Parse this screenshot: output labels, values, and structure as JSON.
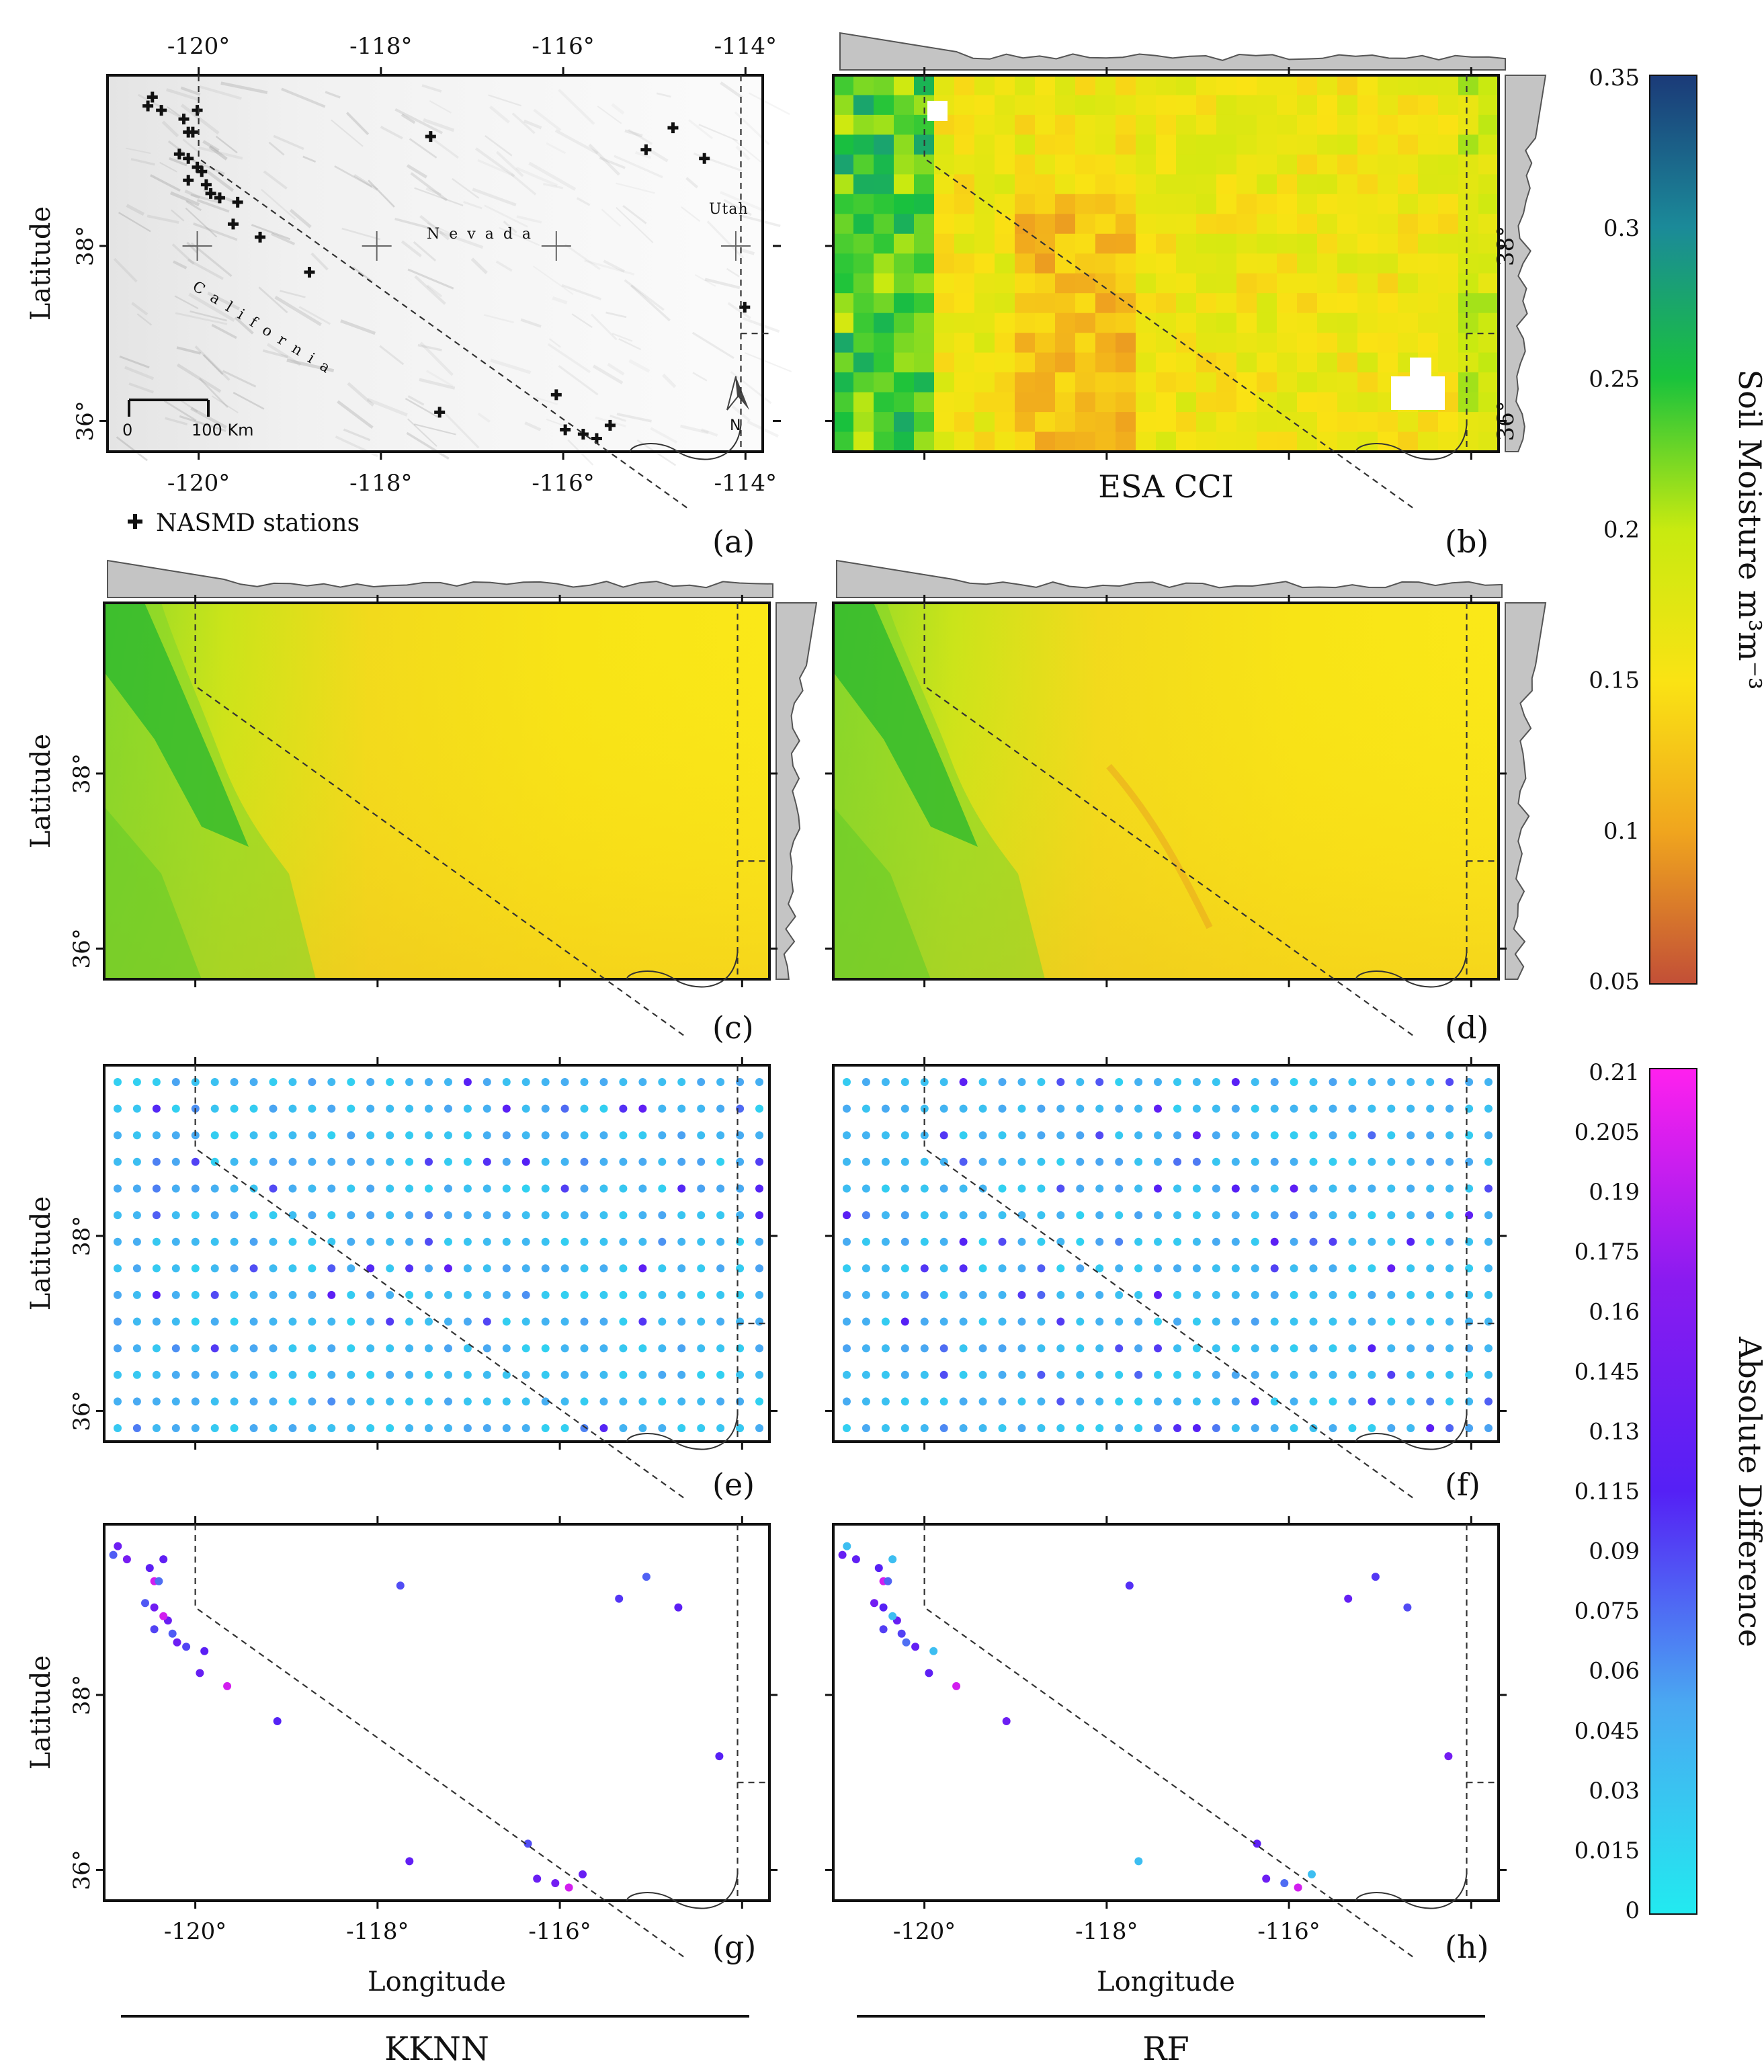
{
  "panels": {
    "a": {
      "label": "(a)",
      "legend": "NASMD stations",
      "states": [
        "California",
        "Nevada",
        "Utah"
      ],
      "scalebar": [
        "0",
        "100 Km"
      ],
      "north": "N"
    },
    "b": {
      "label": "(b)",
      "caption": "ESA CCI"
    },
    "c": {
      "label": "(c)"
    },
    "d": {
      "label": "(d)"
    },
    "e": {
      "label": "(e)"
    },
    "f": {
      "label": "(f)"
    },
    "g": {
      "label": "(g)"
    },
    "h": {
      "label": "(h)"
    }
  },
  "axes": {
    "ylabel": "Latitude",
    "xlabel": "Longitude",
    "lon_ticks_top": [
      "-120°",
      "-118°",
      "-116°",
      "-114°"
    ],
    "lon_ticks_bottom": [
      "-120°",
      "-118°",
      "-116°"
    ],
    "lat_ticks": [
      "38°",
      "36°"
    ]
  },
  "columns": {
    "left": "KKNN",
    "right": "RF"
  },
  "colorbar_moisture": {
    "title": "Soil Moisture m³m⁻³",
    "ticks": [
      "0.35",
      "0.3",
      "0.25",
      "0.2",
      "0.15",
      "0.1",
      "0.05"
    ],
    "min": 0.05,
    "max": 0.35,
    "colors": [
      "#1b3a78",
      "#1b8a99",
      "#19c23c",
      "#c8ea10",
      "#fae314",
      "#f0a51e",
      "#c24f37"
    ]
  },
  "colorbar_diff": {
    "title": "Absolute Difference",
    "ticks": [
      "0.21",
      "0.205",
      "0.19",
      "0.175",
      "0.16",
      "0.145",
      "0.13",
      "0.115",
      "0.09",
      "0.075",
      "0.06",
      "0.045",
      "0.03",
      "0.015",
      "0"
    ],
    "min": 0,
    "max": 0.21,
    "colors": [
      "#ff20ee",
      "#8a1bf0",
      "#5520f5",
      "#4aa8f2",
      "#22eaf0"
    ]
  },
  "stations": [
    [
      -120.5,
      39.7
    ],
    [
      -120.4,
      39.55
    ],
    [
      -120.55,
      39.6
    ],
    [
      -120.1,
      39.3
    ],
    [
      -120.15,
      39.45
    ],
    [
      -120.0,
      39.55
    ],
    [
      -120.05,
      39.3
    ],
    [
      -120.2,
      39.05
    ],
    [
      -120.1,
      39.0
    ],
    [
      -119.95,
      38.85
    ],
    [
      -120.0,
      38.9
    ],
    [
      -120.1,
      38.75
    ],
    [
      -119.9,
      38.7
    ],
    [
      -119.85,
      38.6
    ],
    [
      -119.75,
      38.55
    ],
    [
      -119.55,
      38.5
    ],
    [
      -119.6,
      38.25
    ],
    [
      -119.3,
      38.1
    ],
    [
      -118.75,
      37.7
    ],
    [
      -117.4,
      39.25
    ],
    [
      -117.3,
      36.1
    ],
    [
      -116.0,
      36.3
    ],
    [
      -115.9,
      35.9
    ],
    [
      -115.7,
      35.85
    ],
    [
      -115.55,
      35.8
    ],
    [
      -115.4,
      35.95
    ],
    [
      -115.0,
      39.1
    ],
    [
      -114.7,
      39.35
    ],
    [
      -114.35,
      39.0
    ],
    [
      -113.9,
      37.3
    ]
  ]
}
